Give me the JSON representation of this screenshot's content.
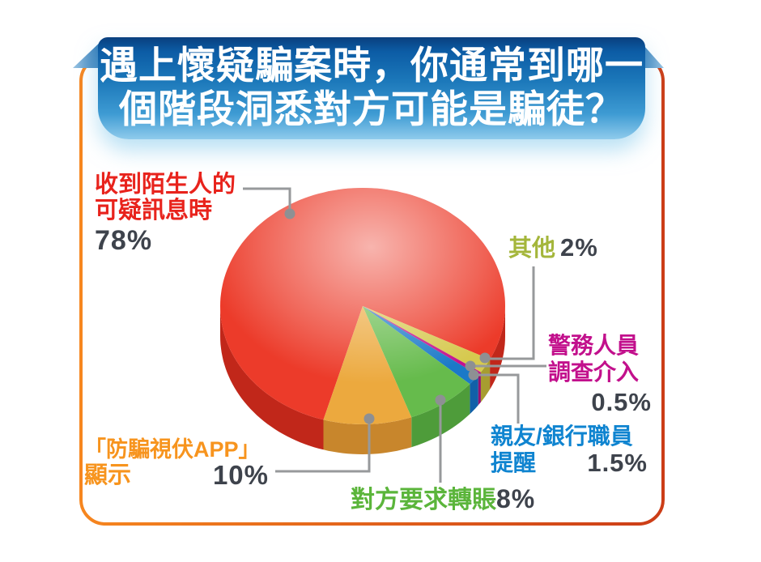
{
  "banner": {
    "title_line1": "遇上懷疑騙案時，你通常到哪一",
    "title_line2": "個階段洞悉對方可能是騙徒？",
    "text_color": "#FFFFFF",
    "bg_top_color": "#093F7E",
    "bg_bottom_color": "#8FCBEC"
  },
  "frame": {
    "border_left_color": "#F6861F",
    "border_right_color": "#CC3D17"
  },
  "callout_style": {
    "line_color": "#97999B",
    "dot_color": "#8E9093"
  },
  "chart_data": {
    "type": "pie",
    "style": "3d-glossy",
    "title": "遇上懷疑騙案時，你通常到哪一個階段洞悉對方可能是騙徒？",
    "unit": "%",
    "direction": "clockwise",
    "start_angle_clock_deg": 196,
    "percent_text_color": "#3E434C",
    "slices": [
      {
        "id": "suspicious-message",
        "label": "收到陌生人的可疑訊息時",
        "label_line1": "收到陌生人的",
        "label_line2": "可疑訊息時",
        "value": 78,
        "pct": "78%",
        "top_color": "#EC3B2A",
        "side_color": "#C1271A",
        "label_color": "#E8231C"
      },
      {
        "id": "others",
        "label": "其他",
        "label_line1": "其他",
        "value": 2,
        "pct": "2%",
        "top_color": "#D6C94F",
        "side_color": "#A79D30",
        "label_color": "#A4B63B"
      },
      {
        "id": "police-investigation",
        "label": "警務人員調查介入",
        "label_line1": "警務人員",
        "label_line2": "調查介入",
        "value": 0.5,
        "pct": "0.5%",
        "top_color": "#C4128E",
        "side_color": "#951070",
        "label_color": "#C2108C"
      },
      {
        "id": "friends-bank-reminder",
        "label": "親友/銀行職員提醒",
        "label_line1": "親友/銀行職員",
        "label_line2": "提醒",
        "value": 1.5,
        "pct": "1.5%",
        "top_color": "#1B79C8",
        "side_color": "#1160A8",
        "label_color": "#0F84D0"
      },
      {
        "id": "transfer-request",
        "label": "對方要求轉賬",
        "label_line1": "對方要求轉賬",
        "value": 8,
        "pct": "8%",
        "top_color": "#66BB4C",
        "side_color": "#4E9C3A",
        "label_color": "#5BB53B"
      },
      {
        "id": "scameter-app",
        "label": "「防騙視伏APP」顯示",
        "label_line1": "「防騙視伏APP」",
        "label_line2": "顯示",
        "value": 10,
        "pct": "10%",
        "top_color": "#ECA93E",
        "side_color": "#C8862C",
        "label_color": "#F7941E"
      }
    ]
  }
}
